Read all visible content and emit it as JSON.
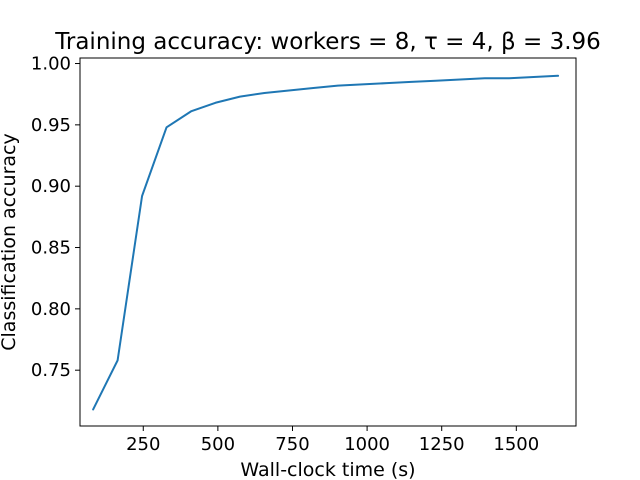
{
  "chart_data": {
    "type": "line",
    "title": "Training accuracy: workers = 8, τ = 4, β = 3.96",
    "xlabel": "Wall-clock time (s)",
    "ylabel": "Classification accuracy",
    "xlim": [
      38,
      1700
    ],
    "ylim": [
      0.7045,
      1.0045
    ],
    "xticks": [
      250,
      500,
      750,
      1000,
      1250,
      1500
    ],
    "xtick_labels": [
      "250",
      "500",
      "750",
      "1000",
      "1250",
      "1500"
    ],
    "yticks": [
      0.75,
      0.8,
      0.85,
      0.9,
      0.95,
      1.0
    ],
    "ytick_labels": [
      "0.75",
      "0.80",
      "0.85",
      "0.90",
      "0.95",
      "1.00"
    ],
    "grid": false,
    "series": [
      {
        "color": "#1f77b4",
        "x": [
          82,
          164,
          246,
          328,
          410,
          492,
          574,
          656,
          738,
          820,
          902,
          984,
          1066,
          1148,
          1230,
          1312,
          1394,
          1476,
          1558,
          1640
        ],
        "y": [
          0.718,
          0.758,
          0.892,
          0.948,
          0.961,
          0.968,
          0.973,
          0.976,
          0.978,
          0.98,
          0.982,
          0.983,
          0.984,
          0.985,
          0.986,
          0.987,
          0.988,
          0.988,
          0.989,
          0.99
        ]
      }
    ]
  }
}
